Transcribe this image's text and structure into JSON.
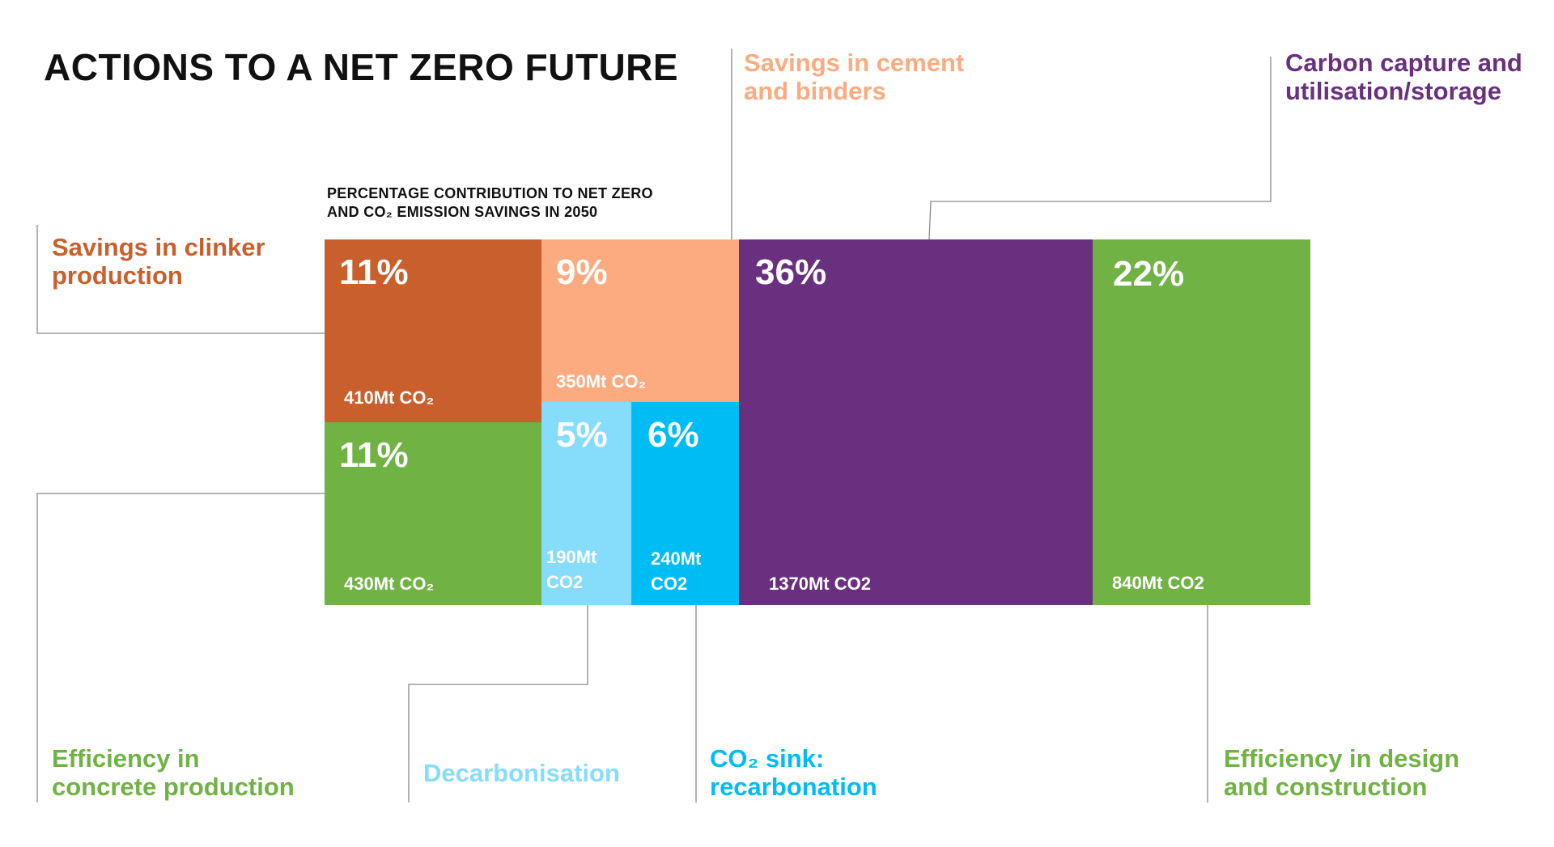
{
  "title": "ACTIONS TO A NET ZERO FUTURE",
  "subtitle": "PERCENTAGE CONTRIBUTION TO NET ZERO\nAND CO₂ EMISSION SAVINGS IN 2050",
  "colors": {
    "clinker": "#c95f2c",
    "cement": "#fcab80",
    "ccus": "#693080",
    "design": "#71b244",
    "concrete": "#71b244",
    "decarbonisation": "#86dcfb",
    "recarbonation": "#00bcf5",
    "leader": "#8a8a8a"
  },
  "labels": {
    "clinker": "Savings in clinker\nproduction",
    "cement": "Savings in cement\nand binders",
    "ccus": "Carbon capture and\nutilisation/storage",
    "concrete": "Efficiency in\nconcrete production",
    "decarbonisation": "Decarbonisation",
    "recarbonation": "CO₂ sink:\nrecarbonation",
    "design": "Efficiency in design\nand construction"
  },
  "chart_data": {
    "type": "treemap",
    "title": "PERCENTAGE CONTRIBUTION TO NET ZERO AND CO₂ EMISSION SAVINGS IN 2050",
    "segments": [
      {
        "key": "clinker",
        "name": "Savings in clinker production",
        "percent": 11,
        "percent_label": "11%",
        "savings_mt": 410,
        "savings_label": "410Mt CO₂"
      },
      {
        "key": "concrete",
        "name": "Efficiency in concrete production",
        "percent": 11,
        "percent_label": "11%",
        "savings_mt": 430,
        "savings_label": "430Mt CO₂"
      },
      {
        "key": "cement",
        "name": "Savings in cement and binders",
        "percent": 9,
        "percent_label": "9%",
        "savings_mt": 350,
        "savings_label": "350Mt CO₂"
      },
      {
        "key": "decarbonisation",
        "name": "Decarbonisation",
        "percent": 5,
        "percent_label": "5%",
        "savings_mt": 190,
        "savings_label": "190Mt\nCO2"
      },
      {
        "key": "recarbonation",
        "name": "CO₂ sink: recarbonation",
        "percent": 6,
        "percent_label": "6%",
        "savings_mt": 240,
        "savings_label": "240Mt\nCO2"
      },
      {
        "key": "ccus",
        "name": "Carbon capture and utilisation/storage",
        "percent": 36,
        "percent_label": "36%",
        "savings_mt": 1370,
        "savings_label": "1370Mt CO2"
      },
      {
        "key": "design",
        "name": "Efficiency in design and construction",
        "percent": 22,
        "percent_label": "22%",
        "savings_mt": 840,
        "savings_label": "840Mt CO2"
      }
    ]
  }
}
